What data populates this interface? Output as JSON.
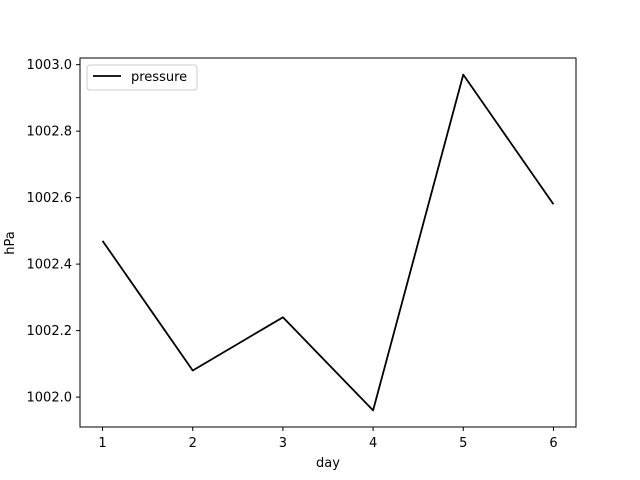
{
  "chart_data": {
    "type": "line",
    "title": "",
    "xlabel": "day",
    "ylabel": "hPa",
    "x": [
      1,
      2,
      3,
      4,
      5,
      6
    ],
    "series": [
      {
        "name": "pressure",
        "color": "#000000",
        "values": [
          1002.47,
          1002.08,
          1002.24,
          1001.96,
          1002.97,
          1002.58
        ]
      }
    ],
    "xlim": [
      0.75,
      6.25
    ],
    "ylim": [
      1001.91,
      1003.02
    ],
    "xticks": [
      "1",
      "2",
      "3",
      "4",
      "5",
      "6"
    ],
    "yticks": [
      "1002.0",
      "1002.2",
      "1002.4",
      "1002.6",
      "1002.8",
      "1003.0"
    ],
    "grid": false,
    "legend": "top-left"
  }
}
